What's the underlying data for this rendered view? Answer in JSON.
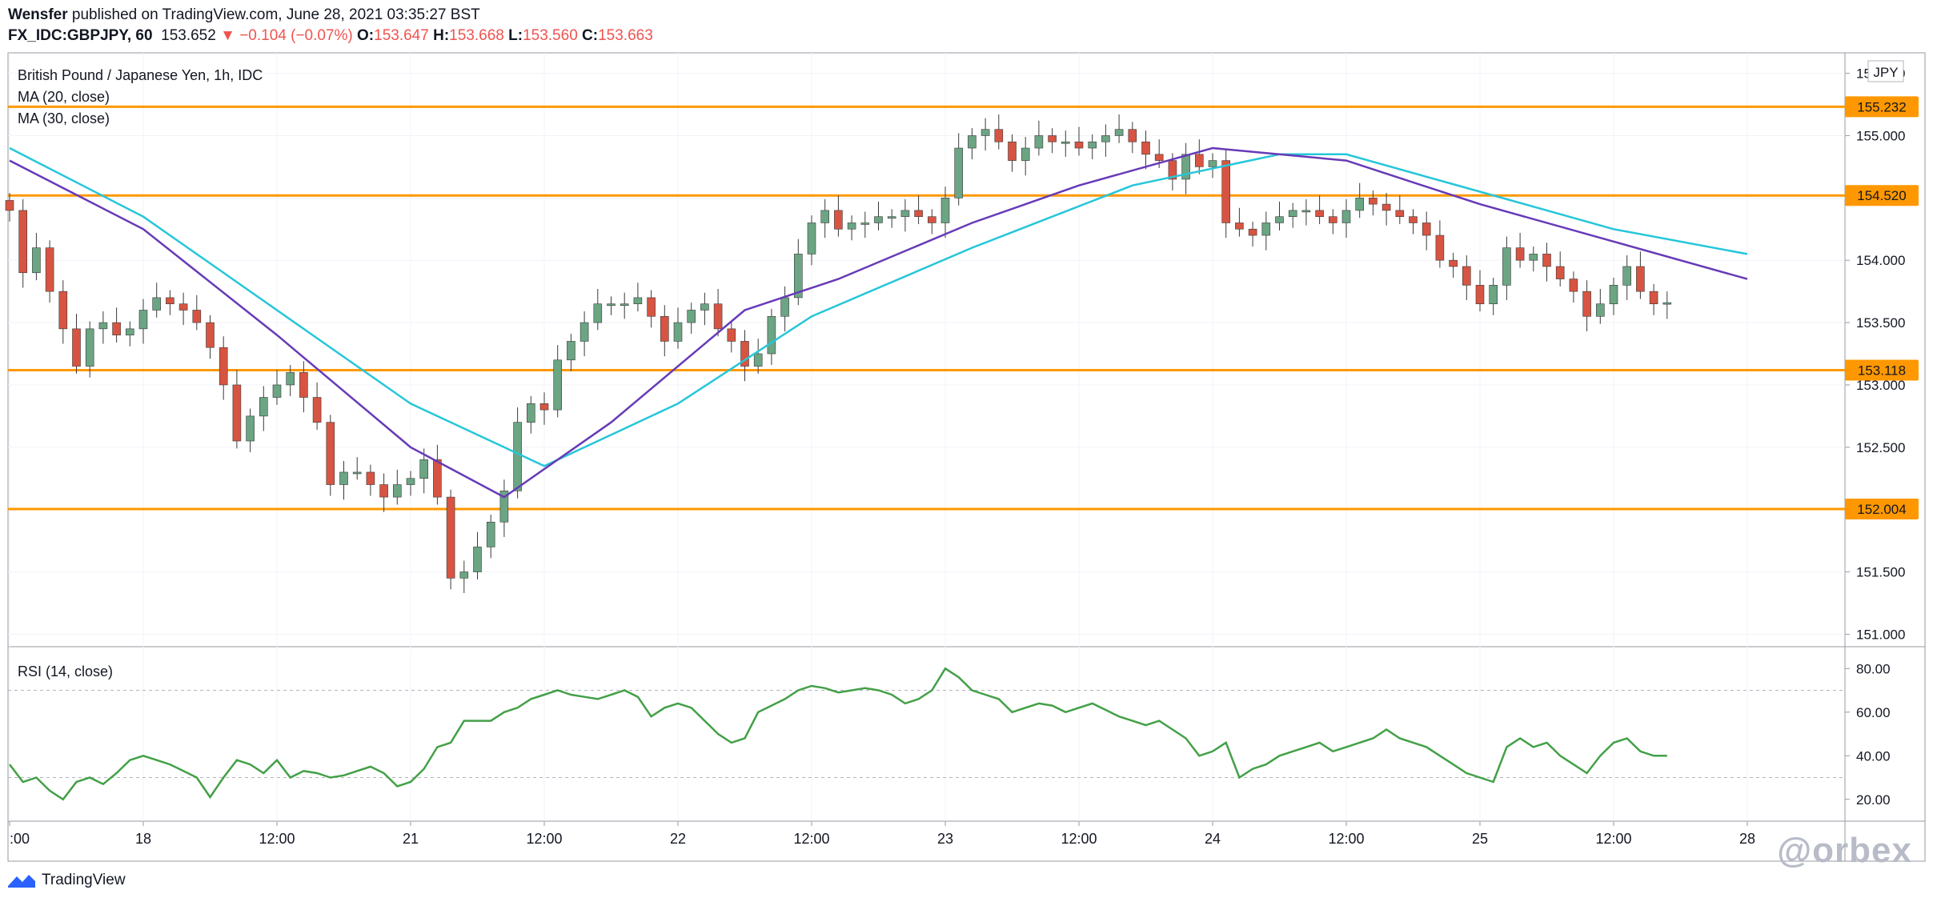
{
  "header": {
    "author": "Wensfer",
    "published_text": "published on TradingView.com, June 28, 2021 03:35:27 BST",
    "symbol": "FX_IDC:GBPJPY, 60",
    "last": "153.652",
    "change_arrow": "▼",
    "change": "−0.104 (−0.07%)",
    "o_label": "O:",
    "o_value": "153.647",
    "h_label": "H:",
    "h_value": "153.668",
    "l_label": "L:",
    "l_value": "153.560",
    "c_label": "C:",
    "c_value": "153.663"
  },
  "legend": {
    "instrument": "British Pound / Japanese Yen, 1h, IDC",
    "ma20": "MA (20, close)",
    "ma30": "MA (30, close)",
    "rsi": "RSI (14, close)"
  },
  "currency_badge": "JPY",
  "footer": {
    "brand": "TradingView",
    "watermark": "@orbex"
  },
  "colors": {
    "up": "#6ba583",
    "down": "#d75442",
    "ma20": "#673ab7",
    "ma30": "#26c6da",
    "hline": "#ff9800",
    "rsi": "#43a047",
    "grid": "#f0f3fa"
  },
  "chart_data": {
    "type": "candlestick",
    "price_axis": {
      "min": 150.9,
      "max": 155.6,
      "ticks": [
        "151.000",
        "151.500",
        "152.000",
        "152.500",
        "153.000",
        "153.500",
        "154.000",
        "154.500",
        "155.000",
        "155.500"
      ]
    },
    "time_axis": {
      "labels": [
        ":00",
        "18",
        "12:00",
        "21",
        "12:00",
        "22",
        "12:00",
        "23",
        "12:00",
        "24",
        "12:00",
        "25",
        "12:00",
        "28"
      ],
      "label_bars": [
        0,
        10,
        20,
        30,
        40,
        50,
        60,
        70,
        80,
        90,
        100,
        110,
        120,
        130
      ]
    },
    "horizontal_levels": [
      {
        "price": 155.232,
        "label": "155.232"
      },
      {
        "price": 154.52,
        "label": "154.520"
      },
      {
        "price": 153.118,
        "label": "153.118"
      },
      {
        "price": 152.004,
        "label": "152.004"
      }
    ],
    "closes": [
      154.4,
      153.9,
      154.1,
      153.75,
      153.45,
      153.15,
      153.45,
      153.5,
      153.4,
      153.45,
      153.6,
      153.7,
      153.65,
      153.6,
      153.5,
      153.3,
      153.0,
      152.55,
      152.75,
      152.9,
      153.0,
      153.1,
      152.9,
      152.7,
      152.2,
      152.3,
      152.3,
      152.2,
      152.1,
      152.2,
      152.25,
      152.4,
      152.1,
      151.45,
      151.5,
      151.7,
      151.9,
      152.15,
      152.7,
      152.85,
      152.8,
      153.2,
      153.35,
      153.5,
      153.65,
      153.65,
      153.65,
      153.7,
      153.55,
      153.35,
      153.5,
      153.6,
      153.65,
      153.45,
      153.35,
      153.15,
      153.25,
      153.55,
      153.7,
      154.05,
      154.3,
      154.4,
      154.25,
      154.3,
      154.3,
      154.35,
      154.35,
      154.4,
      154.35,
      154.3,
      154.5,
      154.9,
      155.0,
      155.05,
      154.95,
      154.8,
      154.9,
      155.0,
      154.95,
      154.95,
      154.9,
      154.95,
      155.0,
      155.05,
      154.95,
      154.85,
      154.8,
      154.65,
      154.85,
      154.75,
      154.8,
      154.3,
      154.25,
      154.2,
      154.3,
      154.35,
      154.4,
      154.4,
      154.35,
      154.3,
      154.4,
      154.5,
      154.45,
      154.4,
      154.35,
      154.3,
      154.2,
      154.0,
      153.95,
      153.8,
      153.65,
      153.8,
      154.1,
      154.0,
      154.05,
      153.95,
      153.85,
      153.75,
      153.55,
      153.65,
      153.8,
      153.95,
      153.75,
      153.65,
      153.66
    ],
    "ma20_points": [
      [
        0,
        154.8
      ],
      [
        10,
        154.25
      ],
      [
        20,
        153.4
      ],
      [
        30,
        152.5
      ],
      [
        37,
        152.1
      ],
      [
        45,
        152.7
      ],
      [
        55,
        153.6
      ],
      [
        62,
        153.85
      ],
      [
        72,
        154.3
      ],
      [
        80,
        154.6
      ],
      [
        90,
        154.9
      ],
      [
        100,
        154.8
      ],
      [
        110,
        154.45
      ],
      [
        120,
        154.15
      ],
      [
        130,
        153.85
      ]
    ],
    "ma30_points": [
      [
        0,
        154.9
      ],
      [
        10,
        154.35
      ],
      [
        20,
        153.6
      ],
      [
        30,
        152.85
      ],
      [
        40,
        152.35
      ],
      [
        50,
        152.85
      ],
      [
        60,
        153.55
      ],
      [
        72,
        154.1
      ],
      [
        84,
        154.6
      ],
      [
        95,
        154.85
      ],
      [
        100,
        154.85
      ],
      [
        110,
        154.55
      ],
      [
        120,
        154.25
      ],
      [
        130,
        154.05
      ]
    ],
    "rsi": {
      "axis_ticks": [
        "20.00",
        "40.00",
        "60.00",
        "80.00"
      ],
      "bands": [
        30,
        70
      ],
      "values": [
        36,
        28,
        30,
        24,
        20,
        28,
        30,
        27,
        32,
        38,
        40,
        38,
        36,
        33,
        30,
        21,
        30,
        38,
        36,
        32,
        38,
        30,
        33,
        32,
        30,
        31,
        33,
        35,
        32,
        26,
        28,
        34,
        44,
        46,
        56,
        56,
        56,
        60,
        62,
        66,
        68,
        70,
        68,
        67,
        66,
        68,
        70,
        67,
        58,
        62,
        64,
        62,
        56,
        50,
        46,
        48,
        60,
        63,
        66,
        70,
        72,
        71,
        69,
        70,
        71,
        70,
        68,
        64,
        66,
        70,
        80,
        76,
        70,
        68,
        66,
        60,
        62,
        64,
        63,
        60,
        62,
        64,
        61,
        58,
        56,
        54,
        56,
        52,
        48,
        40,
        42,
        46,
        30,
        34,
        36,
        40,
        42,
        44,
        46,
        42,
        44,
        46,
        48,
        52,
        48,
        46,
        44,
        40,
        36,
        32,
        30,
        28,
        44,
        48,
        44,
        46,
        40,
        36,
        32,
        40,
        46,
        48,
        42,
        40,
        40
      ]
    }
  }
}
